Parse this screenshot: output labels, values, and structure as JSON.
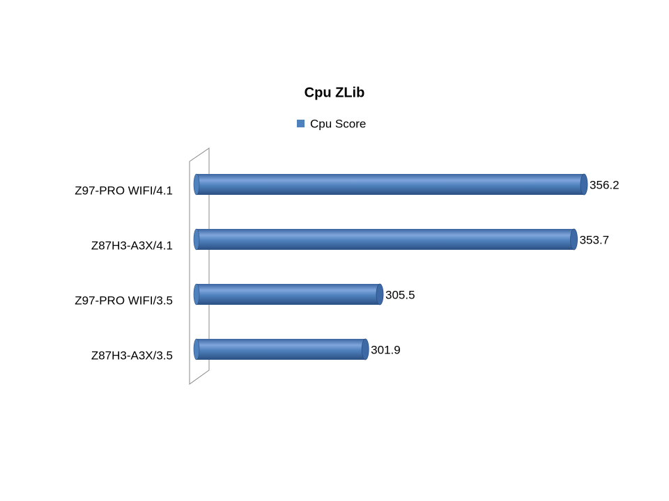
{
  "chart_data": {
    "type": "bar",
    "orientation": "horizontal",
    "title": "Cpu ZLib",
    "categories": [
      "Z97-PRO WIFI/4.1",
      "Z87H3-A3X/4.1",
      "Z97-PRO WIFI/3.5",
      "Z87H3-A3X/3.5"
    ],
    "series": [
      {
        "name": "Cpu Score",
        "color": "#4f81bd",
        "values": [
          356.2,
          353.7,
          305.5,
          301.9
        ]
      }
    ],
    "xlim": [
      260,
      360
    ]
  }
}
